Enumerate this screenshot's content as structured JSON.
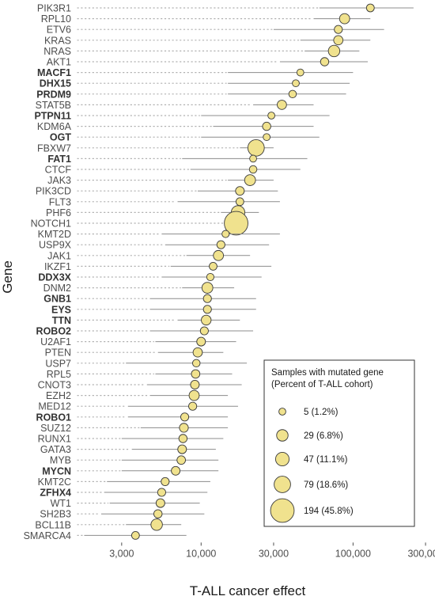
{
  "chart_data": {
    "type": "scatter",
    "xlabel": "T-ALL cancer effect",
    "ylabel": "Gene",
    "x_scale": "log",
    "xlim": [
      1500,
      330000
    ],
    "x_ticks": [
      3000,
      10000,
      30000,
      100000,
      300000
    ],
    "x_tick_labels": [
      "3,000",
      "10,000",
      "30,000",
      "100,000",
      "300,000"
    ],
    "colors": {
      "point_fill": "#f0e28e",
      "point_stroke": "#3a3a3a",
      "interval": "#8c8c8c",
      "dots": "#b0b0b0"
    },
    "legend": {
      "position": "bottom-right",
      "title_lines": [
        "Samples with mutated gene",
        "(Percent of T-ALL cohort)"
      ],
      "entries": [
        {
          "samples": 5,
          "label": "5 (1.2%)"
        },
        {
          "samples": 29,
          "label": "29 (6.8%)"
        },
        {
          "samples": 47,
          "label": "47 (11.1%)"
        },
        {
          "samples": 79,
          "label": "79 (18.6%)"
        },
        {
          "samples": 194,
          "label": "194 (45.8%)"
        }
      ]
    },
    "genes": [
      {
        "name": "PIK3R1",
        "bold": false,
        "effect": 130000,
        "low": 60000,
        "high": 250000,
        "samples": 8
      },
      {
        "name": "RPL10",
        "bold": false,
        "effect": 88000,
        "low": 55000,
        "high": 130000,
        "samples": 20
      },
      {
        "name": "ETV6",
        "bold": false,
        "effect": 80000,
        "low": 30000,
        "high": 160000,
        "samples": 9
      },
      {
        "name": "KRAS",
        "bold": false,
        "effect": 80000,
        "low": 45000,
        "high": 130000,
        "samples": 15
      },
      {
        "name": "NRAS",
        "bold": false,
        "effect": 75000,
        "low": 48000,
        "high": 110000,
        "samples": 29
      },
      {
        "name": "AKT1",
        "bold": false,
        "effect": 65000,
        "low": 33000,
        "high": 125000,
        "samples": 10
      },
      {
        "name": "MACF1",
        "bold": true,
        "effect": 45000,
        "low": 15000,
        "high": 100000,
        "samples": 5
      },
      {
        "name": "DHX15",
        "bold": true,
        "effect": 42000,
        "low": 15000,
        "high": 95000,
        "samples": 5
      },
      {
        "name": "PRDM9",
        "bold": true,
        "effect": 40000,
        "low": 15000,
        "high": 90000,
        "samples": 7
      },
      {
        "name": "STAT5B",
        "bold": false,
        "effect": 34000,
        "low": 22000,
        "high": 55000,
        "samples": 15
      },
      {
        "name": "PTPN11",
        "bold": true,
        "effect": 29000,
        "low": 10000,
        "high": 70000,
        "samples": 5
      },
      {
        "name": "KDM6A",
        "bold": false,
        "effect": 27000,
        "low": 12000,
        "high": 55000,
        "samples": 10
      },
      {
        "name": "OGT",
        "bold": true,
        "effect": 27000,
        "low": 10000,
        "high": 60000,
        "samples": 5
      },
      {
        "name": "FBXW7",
        "bold": false,
        "effect": 23000,
        "low": 18000,
        "high": 30000,
        "samples": 79
      },
      {
        "name": "FAT1",
        "bold": true,
        "effect": 22000,
        "low": 7500,
        "high": 50000,
        "samples": 5
      },
      {
        "name": "CTCF",
        "bold": false,
        "effect": 22000,
        "low": 8500,
        "high": 45000,
        "samples": 7
      },
      {
        "name": "JAK3",
        "bold": false,
        "effect": 21000,
        "low": 15000,
        "high": 30000,
        "samples": 25
      },
      {
        "name": "PIK3CD",
        "bold": false,
        "effect": 18000,
        "low": 9500,
        "high": 32000,
        "samples": 12
      },
      {
        "name": "FLT3",
        "bold": false,
        "effect": 18000,
        "low": 7000,
        "high": 33000,
        "samples": 8
      },
      {
        "name": "PHF6",
        "bold": false,
        "effect": 17500,
        "low": 13500,
        "high": 24000,
        "samples": 47
      },
      {
        "name": "NOTCH1",
        "bold": false,
        "effect": 17000,
        "low": 15000,
        "high": 19500,
        "samples": 194
      },
      {
        "name": "KMT2D",
        "bold": false,
        "effect": 14500,
        "low": 5500,
        "high": 33000,
        "samples": 6
      },
      {
        "name": "USP9X",
        "bold": false,
        "effect": 13500,
        "low": 5800,
        "high": 28000,
        "samples": 9
      },
      {
        "name": "JAK1",
        "bold": false,
        "effect": 13000,
        "low": 8000,
        "high": 21000,
        "samples": 20
      },
      {
        "name": "IKZF1",
        "bold": false,
        "effect": 12000,
        "low": 6300,
        "high": 29000,
        "samples": 8
      },
      {
        "name": "DDX3X",
        "bold": true,
        "effect": 11500,
        "low": 5500,
        "high": 25000,
        "samples": 6
      },
      {
        "name": "DNM2",
        "bold": false,
        "effect": 11000,
        "low": 7500,
        "high": 16500,
        "samples": 25
      },
      {
        "name": "GNB1",
        "bold": true,
        "effect": 11000,
        "low": 4600,
        "high": 23000,
        "samples": 9
      },
      {
        "name": "EYS",
        "bold": true,
        "effect": 11000,
        "low": 4600,
        "high": 23000,
        "samples": 9
      },
      {
        "name": "TTN",
        "bold": true,
        "effect": 10800,
        "low": 7000,
        "high": 18000,
        "samples": 18
      },
      {
        "name": "ROBO2",
        "bold": true,
        "effect": 10500,
        "low": 4600,
        "high": 22000,
        "samples": 9
      },
      {
        "name": "U2AF1",
        "bold": false,
        "effect": 10000,
        "low": 5000,
        "high": 17000,
        "samples": 12
      },
      {
        "name": "PTEN",
        "bold": false,
        "effect": 9500,
        "low": 5200,
        "high": 14000,
        "samples": 15
      },
      {
        "name": "USP7",
        "bold": false,
        "effect": 9300,
        "low": 3200,
        "high": 20000,
        "samples": 7
      },
      {
        "name": "RPL5",
        "bold": false,
        "effect": 9200,
        "low": 5000,
        "high": 16000,
        "samples": 11
      },
      {
        "name": "CNOT3",
        "bold": false,
        "effect": 9100,
        "low": 4400,
        "high": 18500,
        "samples": 12
      },
      {
        "name": "EZH2",
        "bold": false,
        "effect": 9000,
        "low": 4600,
        "high": 15000,
        "samples": 20
      },
      {
        "name": "MED12",
        "bold": false,
        "effect": 8800,
        "low": 3300,
        "high": 17500,
        "samples": 9
      },
      {
        "name": "ROBO1",
        "bold": true,
        "effect": 7800,
        "low": 3300,
        "high": 15000,
        "samples": 9
      },
      {
        "name": "SUZ12",
        "bold": false,
        "effect": 7700,
        "low": 4000,
        "high": 15000,
        "samples": 13
      },
      {
        "name": "RUNX1",
        "bold": false,
        "effect": 7600,
        "low": 3000,
        "high": 14000,
        "samples": 10
      },
      {
        "name": "GATA3",
        "bold": false,
        "effect": 7500,
        "low": 3500,
        "high": 12500,
        "samples": 12
      },
      {
        "name": "MYB",
        "bold": false,
        "effect": 7400,
        "low": 3000,
        "high": 13000,
        "samples": 11
      },
      {
        "name": "MYCN",
        "bold": true,
        "effect": 6800,
        "low": 3000,
        "high": 13000,
        "samples": 12
      },
      {
        "name": "KMT2C",
        "bold": false,
        "effect": 5800,
        "low": 2400,
        "high": 11500,
        "samples": 9
      },
      {
        "name": "ZFHX4",
        "bold": true,
        "effect": 5500,
        "low": 2300,
        "high": 11000,
        "samples": 9
      },
      {
        "name": "WT1",
        "bold": false,
        "effect": 5400,
        "low": 2500,
        "high": 9800,
        "samples": 12
      },
      {
        "name": "SH2B3",
        "bold": false,
        "effect": 5200,
        "low": 2200,
        "high": 10500,
        "samples": 10
      },
      {
        "name": "BCL11B",
        "bold": false,
        "effect": 5100,
        "low": 3200,
        "high": 7400,
        "samples": 29
      },
      {
        "name": "SMARCA4",
        "bold": false,
        "effect": 3700,
        "low": 1700,
        "high": 8000,
        "samples": 8
      }
    ]
  }
}
